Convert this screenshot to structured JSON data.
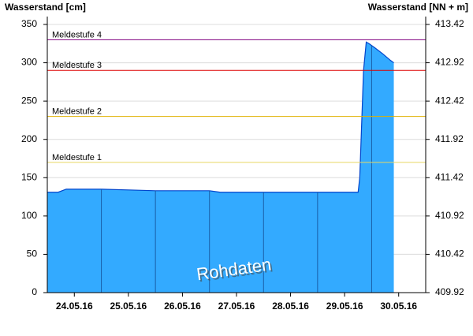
{
  "chart_data": {
    "type": "area",
    "y_title": "Wasserstand [cm]",
    "y2_title": "Wasserstand [NN + m]",
    "annotation": "Rohdaten",
    "x": [
      0,
      0.2,
      0.35,
      1,
      1.5,
      2,
      3,
      3.2,
      5,
      5.75,
      5.78,
      5.82,
      5.85,
      5.9,
      5.95,
      6.05,
      6.2,
      6.35,
      6.41
    ],
    "values": [
      131,
      131,
      135,
      135,
      134,
      133,
      133,
      131,
      131,
      131,
      150,
      230,
      290,
      327,
      325,
      320,
      312,
      303,
      300
    ],
    "color": "#33aaff",
    "xlim": [
      0,
      7
    ],
    "xticks": [
      {
        "value": 0.5,
        "label": "24.05.16"
      },
      {
        "value": 1.5,
        "label": "25.05.16"
      },
      {
        "value": 2.5,
        "label": "26.05.16"
      },
      {
        "value": 3.5,
        "label": "27.05.16"
      },
      {
        "value": 4.5,
        "label": "28.05.16"
      },
      {
        "value": 5.5,
        "label": "29.05.16"
      },
      {
        "value": 6.5,
        "label": "30.05.16"
      }
    ],
    "ylim": [
      0,
      350
    ],
    "yticks": [
      0,
      50,
      100,
      150,
      200,
      250,
      300,
      350
    ],
    "y2lim": [
      409.92,
      413.42
    ],
    "y2ticks": [
      409.92,
      410.42,
      410.92,
      411.42,
      411.92,
      412.42,
      412.92,
      413.42
    ],
    "grid": true,
    "thresholds": [
      {
        "label": "Meldestufe 1",
        "value": 170,
        "color": "#e8d860"
      },
      {
        "label": "Meldestufe 2",
        "value": 230,
        "color": "#e0b000"
      },
      {
        "label": "Meldestufe 3",
        "value": 290,
        "color": "#dd0000"
      },
      {
        "label": "Meldestufe 4",
        "value": 330,
        "color": "#800080"
      }
    ]
  }
}
